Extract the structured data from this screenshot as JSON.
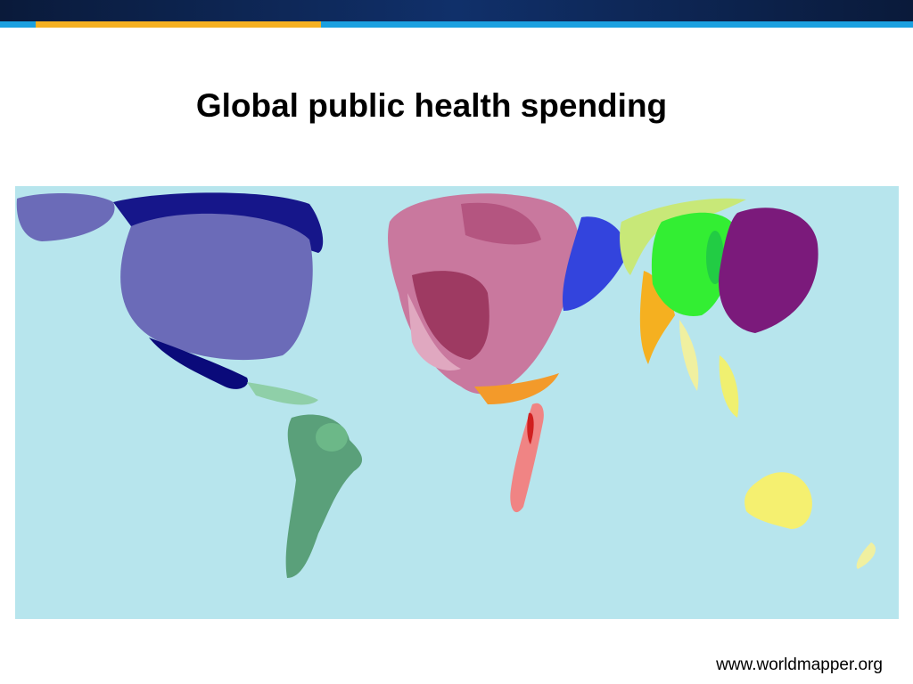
{
  "header": {
    "title": "Global public health spending"
  },
  "footer": {
    "source": "www.worldmapper.org"
  }
}
